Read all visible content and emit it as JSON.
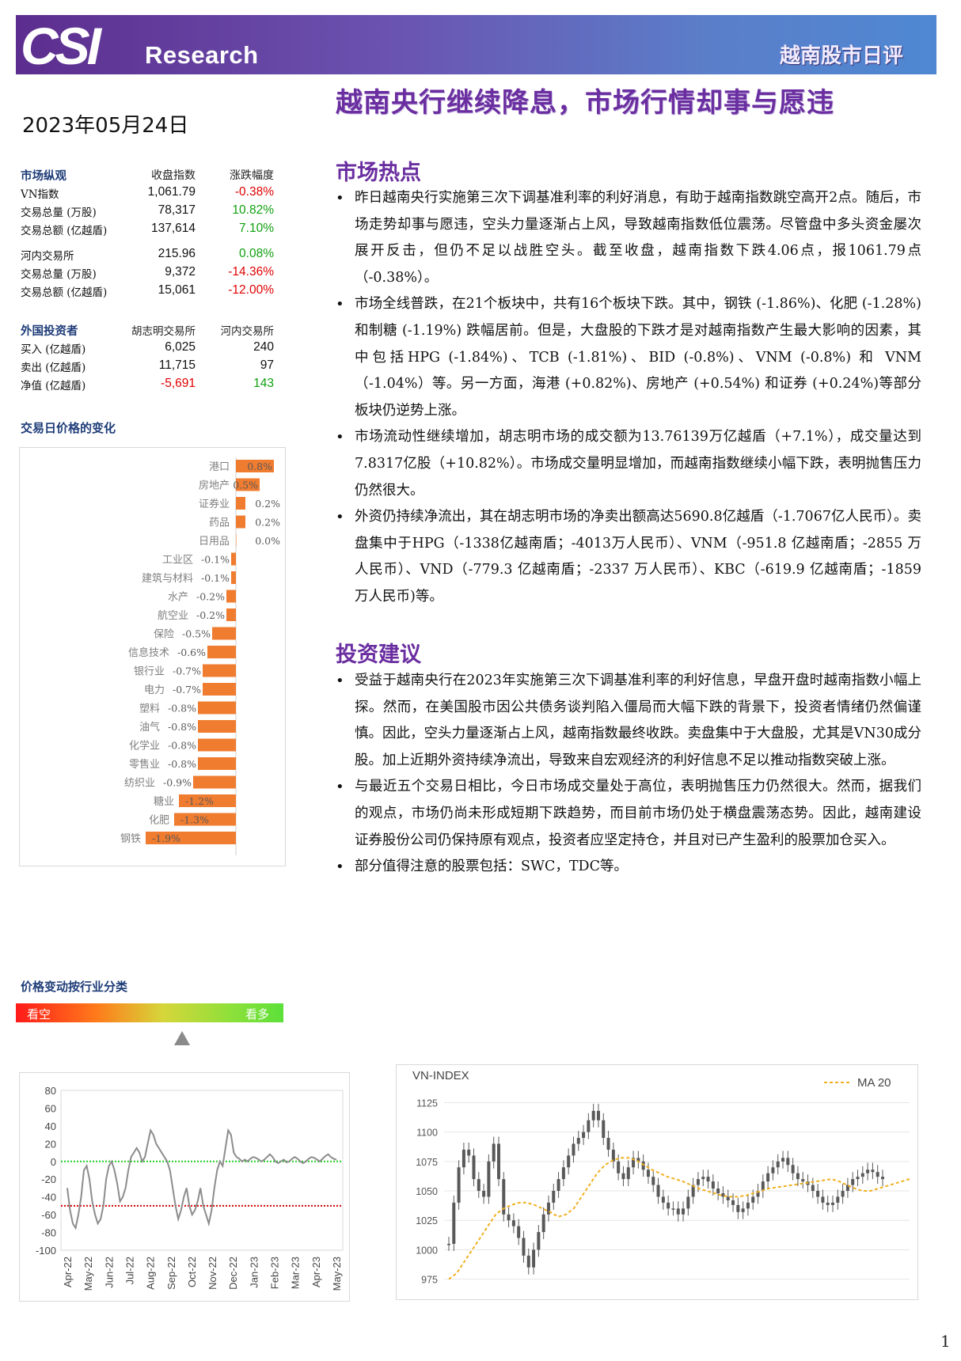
{
  "header": {
    "logo_text": "CSI",
    "brand": "Research",
    "report_type": "越南股市日评"
  },
  "title": "越南央行继续降息，市场行情却事与愿违",
  "date": "2023年05月24日",
  "market_overview": {
    "header": [
      "市场纵观",
      "收盘指数",
      "涨跌幅度"
    ],
    "hcm": [
      {
        "label": "VN指数",
        "value": "1,061.79",
        "change": "-0.38%",
        "dir": "down"
      },
      {
        "label": "交易总量 (万股)",
        "value": "78,317",
        "change": "10.82%",
        "dir": "up"
      },
      {
        "label": "交易总额 (亿越盾)",
        "value": "137,614",
        "change": "7.10%",
        "dir": "up"
      }
    ],
    "hanoi": [
      {
        "label": "河内交易所",
        "value": "215.96",
        "change": "0.08%",
        "dir": "up"
      },
      {
        "label": "交易总量 (万股)",
        "value": "9,372",
        "change": "-14.36%",
        "dir": "down"
      },
      {
        "label": "交易总额 (亿越盾)",
        "value": "15,061",
        "change": "-12.00%",
        "dir": "down"
      }
    ]
  },
  "foreign_investors": {
    "header": [
      "外国投资者",
      "胡志明交易所",
      "河内交易所"
    ],
    "rows": [
      {
        "label": "买入 (亿越盾)",
        "hcm": "6,025",
        "hnx": "240",
        "hcm_dir": "none",
        "hnx_dir": "none"
      },
      {
        "label": "卖出 (亿越盾)",
        "hcm": "11,715",
        "hnx": "97",
        "hcm_dir": "none",
        "hnx_dir": "none"
      },
      {
        "label": "净值 (亿越盾)",
        "hcm": "-5,691",
        "hnx": "143",
        "hcm_dir": "down",
        "hnx_dir": "up"
      }
    ]
  },
  "sector_chart_title": "交易日价格的变化",
  "chart_data": [
    {
      "type": "bar",
      "orientation": "horizontal",
      "title": "",
      "categories": [
        "港口",
        "房地产",
        "证券业",
        "药品",
        "日用品",
        "工业区",
        "建筑与材料",
        "水产",
        "航空业",
        "保险",
        "信息技术",
        "银行业",
        "电力",
        "塑料",
        "油气",
        "化学业",
        "零售业",
        "纺织业",
        "糖业",
        "化肥",
        "钢铁"
      ],
      "values": [
        0.8,
        0.5,
        0.2,
        0.2,
        0.0,
        -0.1,
        -0.1,
        -0.2,
        -0.2,
        -0.5,
        -0.6,
        -0.7,
        -0.7,
        -0.8,
        -0.8,
        -0.8,
        -0.8,
        -0.9,
        -1.2,
        -1.3,
        -1.9
      ],
      "value_labels": [
        "0.8%",
        "0.5%",
        "0.2%",
        "0.2%",
        "0.0%",
        "-0.1%",
        "-0.1%",
        "-0.2%",
        "-0.2%",
        "-0.5%",
        "-0.6%",
        "-0.7%",
        "-0.7%",
        "-0.8%",
        "-0.8%",
        "-0.8%",
        "-0.8%",
        "-0.9%",
        "-1.2%",
        "-1.3%",
        "-1.9%"
      ],
      "color": "#f07c30"
    },
    {
      "type": "line",
      "title": "",
      "x_ticks": [
        "Apr-22",
        "May-22",
        "Jun-22",
        "Jul-22",
        "Aug-22",
        "Sep-22",
        "Oct-22",
        "Nov-22",
        "Dec-22",
        "Jan-23",
        "Feb-23",
        "Mar-23",
        "Apr-23",
        "May-23"
      ],
      "y_ticks": [
        "80",
        "60",
        "40",
        "20",
        "0",
        "-20",
        "-40",
        "-60",
        "-80",
        "-100"
      ],
      "ylim": [
        -100,
        80
      ],
      "reference_lines": [
        {
          "y": 0,
          "color": "#22cc22"
        },
        {
          "y": -50,
          "color": "#cc0000"
        }
      ],
      "series": [
        {
          "values": [
            -30,
            -55,
            -70,
            -75,
            -60,
            -40,
            -10,
            -5,
            -20,
            -45,
            -60,
            -70,
            -65,
            -50,
            -20,
            -5,
            0,
            -10,
            -25,
            -45,
            -40,
            -30,
            -10,
            5,
            10,
            15,
            10,
            0,
            5,
            20,
            35,
            30,
            20,
            15,
            10,
            5,
            0,
            -10,
            -30,
            -50,
            -65,
            -55,
            -40,
            -30,
            -50,
            -60,
            -55,
            -45,
            -30,
            -50,
            -60,
            -70,
            -55,
            -30,
            -10,
            0,
            -5,
            15,
            35,
            30,
            10,
            5,
            3,
            0,
            2,
            0,
            3,
            5,
            4,
            2,
            0,
            2,
            5,
            8,
            5,
            0,
            -2,
            0,
            2,
            -1,
            0,
            3,
            5,
            3,
            0,
            -2,
            0,
            3,
            5,
            4,
            2,
            0,
            3,
            6,
            8,
            5,
            3,
            2
          ],
          "color": "#8c8c8c"
        }
      ]
    },
    {
      "type": "line",
      "title": "VN-INDEX",
      "y_ticks": [
        "1125",
        "1100",
        "1075",
        "1050",
        "1025",
        "1000",
        "975"
      ],
      "ylim": [
        970,
        1130
      ],
      "legend": {
        "label": "MA 20",
        "placement": "top-right"
      },
      "series": [
        {
          "name": "VN-INDEX",
          "values": [
            1005,
            1040,
            1070,
            1085,
            1080,
            1060,
            1050,
            1045,
            1075,
            1090,
            1060,
            1030,
            1025,
            1020,
            1010,
            995,
            985,
            1000,
            1015,
            1030,
            1040,
            1050,
            1060,
            1070,
            1080,
            1090,
            1095,
            1100,
            1110,
            1118,
            1110,
            1095,
            1085,
            1075,
            1065,
            1060,
            1070,
            1078,
            1075,
            1068,
            1062,
            1055,
            1045,
            1040,
            1035,
            1035,
            1030,
            1035,
            1045,
            1055,
            1060,
            1062,
            1058,
            1052,
            1048,
            1045,
            1042,
            1038,
            1032,
            1035,
            1040,
            1045,
            1050,
            1058,
            1065,
            1070,
            1075,
            1078,
            1072,
            1065,
            1060,
            1058,
            1055,
            1050,
            1045,
            1040,
            1038,
            1040,
            1045,
            1050,
            1055,
            1060,
            1062,
            1065,
            1068,
            1066,
            1062,
            1060
          ],
          "color": "#595959"
        },
        {
          "name": "MA 20",
          "values": [
            975,
            980,
            990,
            1000,
            1010,
            1020,
            1030,
            1035,
            1038,
            1040,
            1040,
            1038,
            1035,
            1032,
            1028,
            1030,
            1035,
            1045,
            1055,
            1065,
            1072,
            1076,
            1078,
            1078,
            1076,
            1072,
            1068,
            1065,
            1062,
            1060,
            1058,
            1055,
            1052,
            1050,
            1048,
            1046,
            1045,
            1045,
            1046,
            1048,
            1050,
            1052,
            1053,
            1054,
            1055,
            1056,
            1057,
            1058,
            1059,
            1060,
            1058,
            1055,
            1052,
            1050,
            1050,
            1052,
            1054,
            1056,
            1058,
            1060
          ],
          "color": "#f0b020"
        }
      ]
    }
  ],
  "market_hot": {
    "title": "市场热点",
    "bullets": [
      "昨日越南央行实施第三次下调基准利率的利好消息，有助于越南指数跳空高开2点。随后，市场走势却事与愿违，空头力量逐渐占上风，导致越南指数低位震荡。尽管盘中多头资金屡次展开反击，但仍不足以战胜空头。截至收盘，越南指数下跌4.06点，报1061.79点（-0.38%）。",
      "市场全线普跌，在21个板块中，共有16个板块下跌。其中，钢铁 (-1.86%)、化肥 (-1.28%) 和制糖 (-1.19%) 跌幅居前。但是，大盘股的下跌才是对越南指数产生最大影响的因素，其中包括HPG (-1.84%)、TCB (-1.81%)、BID (-0.8%)、VNM (-0.8%) 和 VNM （-1.04%）等。另一方面，海港 (+0.82%)、房地产 (+0.54%) 和证券 (+0.24%)等部分板块仍逆势上涨。",
      "市场流动性继续增加，胡志明市场的成交额为13.76139万亿越盾（+7.1%），成交量达到7.8317亿股（+10.82%）。市场成交量明显增加，而越南指数继续小幅下跌，表明抛售压力仍然很大。",
      "外资仍持续净流出，其在胡志明市场的净卖出额高达5690.8亿越盾（-1.7067亿人民币）。卖盘集中于HPG（-1338亿越南盾；-4013万人民币）、VNM（-951.8 亿越南盾；-2855 万人民币）、VND（-779.3 亿越南盾；-2337 万人民币）、KBC（-619.9 亿越南盾；-1859 万人民币)等。"
    ]
  },
  "investment_advice": {
    "title": "投资建议",
    "bullets": [
      "受益于越南央行在2023年实施第三次下调基准利率的利好信息，早盘开盘时越南指数小幅上探。然而，在美国股市因公共债务谈判陷入僵局而大幅下跌的背景下，投资者情绪仍然偏谨慎。因此，空头力量逐渐占上风，越南指数最终收跌。卖盘集中于大盘股，尤其是VN30成分股。加上近期外资持续净流出，导致来自宏观经济的利好信息不足以推动指数突破上涨。",
      "与最近五个交易日相比，今日市场成交量处于高位，表明抛售压力仍然很大。然而，据我们的观点，市场仍尚未形成短期下跌趋势，而目前市场仍处于横盘震荡态势。因此，越南建设证券股份公司仍保持原有观点，投资者应坚定持仓，并且对已产生盈利的股票加仓买入。",
      "部分值得注意的股票包括：SWC，TDC等。"
    ]
  },
  "industry_sentiment": {
    "title": "价格变动按行业分类",
    "bearish": "看空",
    "bullish": "看多",
    "position": 0.62
  },
  "page_number": "1"
}
